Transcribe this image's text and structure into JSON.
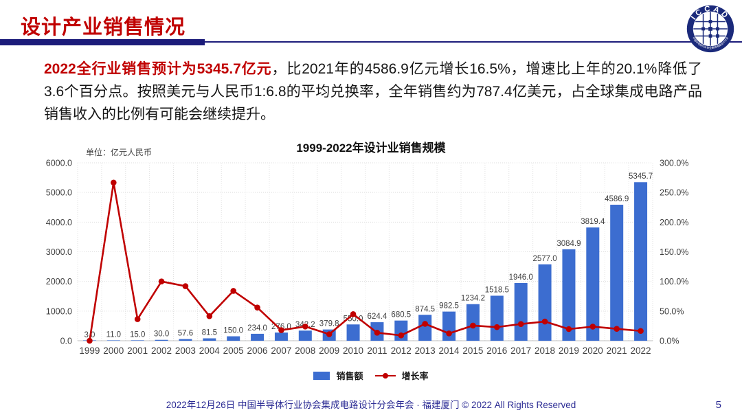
{
  "slide": {
    "title": "设计产业销售情况",
    "footer": "2022年12月26日 中国半导体行业协会集成电路设计分会年会 · 福建厦门 © 2022 All Rights Reserved",
    "page_number": "5"
  },
  "logo": {
    "name": "ICCAD",
    "ring_label": "中国半导体行业协会集成电路设计分会"
  },
  "intro": {
    "highlight": "2022全行业销售预计为5345.7亿元",
    "rest": "，比2021年的4586.9亿元增长16.5%，增速比上年的20.1%降低了3.6个百分点。按照美元与人民币1:6.8的平均兑换率，全年销售约为787.4亿美元，占全球集成电路产品销售收入的比例有可能会继续提升。"
  },
  "chart_data": {
    "type": "bar",
    "title": "1999-2022年设计业销售规模",
    "unit_label": "单位：亿元人民币",
    "categories": [
      "1999",
      "2000",
      "2001",
      "2002",
      "2003",
      "2004",
      "2005",
      "2006",
      "2007",
      "2008",
      "2009",
      "2010",
      "2011",
      "2012",
      "2013",
      "2014",
      "2015",
      "2016",
      "2017",
      "2018",
      "2019",
      "2020",
      "2021",
      "2022"
    ],
    "series": [
      {
        "name": "销售额",
        "type": "bar",
        "axis": "left",
        "color": "#3c6dd0",
        "values": [
          3.0,
          11.0,
          15.0,
          30.0,
          57.6,
          81.5,
          150.0,
          234.0,
          276.0,
          342.2,
          379.8,
          550.0,
          624.4,
          680.5,
          874.5,
          982.5,
          1234.2,
          1518.5,
          1946.0,
          2577.0,
          3084.9,
          3819.4,
          4586.9,
          5345.7
        ],
        "labels": [
          "3.0",
          "11.0",
          "15.0",
          "30.0",
          "57.6",
          "81.5",
          "150.0",
          "234.0",
          "276.0",
          "342.2",
          "379.8",
          "550.0",
          "624.4",
          "680.5",
          "874.5",
          "982.5",
          "1234.2",
          "1518.5",
          "1946.0",
          "2577.0",
          "3084.9",
          "3819.4",
          "4586.9",
          "5345.7"
        ]
      },
      {
        "name": "增长率",
        "type": "line",
        "axis": "right",
        "color": "#c00000",
        "values": [
          0.0,
          266.7,
          36.4,
          100.0,
          92.0,
          41.5,
          84.0,
          56.0,
          17.9,
          24.0,
          11.0,
          44.8,
          13.5,
          9.0,
          28.5,
          12.3,
          25.6,
          23.0,
          28.2,
          32.4,
          19.7,
          23.8,
          20.1,
          16.5
        ]
      }
    ],
    "left_axis": {
      "min": 0,
      "max": 6000,
      "step": 1000,
      "tick_labels": [
        "0.0",
        "1000.0",
        "2000.0",
        "3000.0",
        "4000.0",
        "5000.0",
        "6000.0"
      ]
    },
    "right_axis": {
      "min": 0,
      "max": 300,
      "step": 50,
      "tick_labels": [
        "0.0%",
        "50.0%",
        "100.0%",
        "150.0%",
        "200.0%",
        "250.0%",
        "300.0%"
      ]
    },
    "grid": true,
    "legend_position": "bottom"
  },
  "colors": {
    "accent_red": "#c00000",
    "header_navy": "#1b1b7a",
    "bar_blue": "#3c6dd0",
    "footer_blue": "#2b2b94"
  }
}
